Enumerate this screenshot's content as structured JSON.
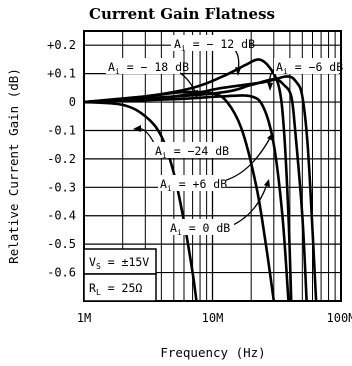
{
  "chart_data": {
    "type": "line",
    "title": "Current Gain Flatness",
    "xlabel": "Frequency (Hz)",
    "ylabel": "Relative Current Gain (dB)",
    "x_scale": "log",
    "xlim": [
      1000000,
      100000000
    ],
    "ylim": [
      -0.7,
      0.25
    ],
    "x_ticks": [
      "1M",
      "10M",
      "100M"
    ],
    "y_ticks": [
      {
        "v": 0.2,
        "label": "+0.2"
      },
      {
        "v": 0.1,
        "label": "+0.1"
      },
      {
        "v": 0.0,
        "label": "0"
      },
      {
        "v": -0.1,
        "label": "-0.1"
      },
      {
        "v": -0.2,
        "label": "-0.2"
      },
      {
        "v": -0.3,
        "label": "-0.3"
      },
      {
        "v": -0.4,
        "label": "-0.4"
      },
      {
        "v": -0.5,
        "label": "-0.5"
      },
      {
        "v": -0.6,
        "label": "-0.6"
      }
    ],
    "grid": true,
    "series": [
      {
        "name": "Ai = -24 dB",
        "points": [
          [
            1000000,
            0
          ],
          [
            2000000,
            -0.01
          ],
          [
            3000000,
            -0.05
          ],
          [
            4000000,
            -0.12
          ],
          [
            5000000,
            -0.25
          ],
          [
            6000000,
            -0.42
          ],
          [
            7000000,
            -0.6
          ],
          [
            7500000,
            -0.7
          ]
        ]
      },
      {
        "name": "Ai = -18 dB",
        "points": [
          [
            1000000,
            0
          ],
          [
            3000000,
            0.02
          ],
          [
            6000000,
            0.035
          ],
          [
            10000000,
            0.03
          ],
          [
            13000000,
            0
          ],
          [
            17000000,
            -0.1
          ],
          [
            22000000,
            -0.3
          ],
          [
            26000000,
            -0.5
          ],
          [
            30000000,
            -0.7
          ]
        ]
      },
      {
        "name": "Ai = -12 dB",
        "points": [
          [
            1000000,
            0
          ],
          [
            3000000,
            0.02
          ],
          [
            7000000,
            0.05
          ],
          [
            12000000,
            0.09
          ],
          [
            18000000,
            0.13
          ],
          [
            23000000,
            0.15
          ],
          [
            28000000,
            0.12
          ],
          [
            33000000,
            0.05
          ],
          [
            36000000,
            -0.1
          ],
          [
            39000000,
            -0.4
          ],
          [
            41000000,
            -0.7
          ]
        ]
      },
      {
        "name": "Ai = -6 dB",
        "points": [
          [
            1000000,
            0
          ],
          [
            5000000,
            0.02
          ],
          [
            12000000,
            0.05
          ],
          [
            25000000,
            0.07
          ],
          [
            38000000,
            0.09
          ],
          [
            45000000,
            0.07
          ],
          [
            50000000,
            0.02
          ],
          [
            55000000,
            -0.15
          ],
          [
            60000000,
            -0.45
          ],
          [
            64000000,
            -0.7
          ]
        ]
      },
      {
        "name": "Ai = 0 dB",
        "points": [
          [
            1000000,
            0
          ],
          [
            5000000,
            0.01
          ],
          [
            12000000,
            0.02
          ],
          [
            20000000,
            0.02
          ],
          [
            25000000,
            -0.02
          ],
          [
            30000000,
            -0.15
          ],
          [
            35000000,
            -0.4
          ],
          [
            39000000,
            -0.7
          ]
        ]
      },
      {
        "name": "Ai = +6 dB",
        "points": [
          [
            1000000,
            0
          ],
          [
            10000000,
            0.03
          ],
          [
            20000000,
            0.06
          ],
          [
            30000000,
            0.08
          ],
          [
            36000000,
            0.06
          ],
          [
            41000000,
            0.02
          ],
          [
            44000000,
            -0.1
          ],
          [
            50000000,
            -0.4
          ],
          [
            54000000,
            -0.7
          ]
        ]
      }
    ],
    "curve_labels": [
      "Ai = -12 dB",
      "Ai = -18 dB",
      "Ai = -6 dB",
      "Ai = -24 dB",
      "Ai = +6 dB",
      "Ai = 0 dB"
    ],
    "conditions": [
      "VS = ±15V",
      "RL = 25Ω"
    ]
  }
}
